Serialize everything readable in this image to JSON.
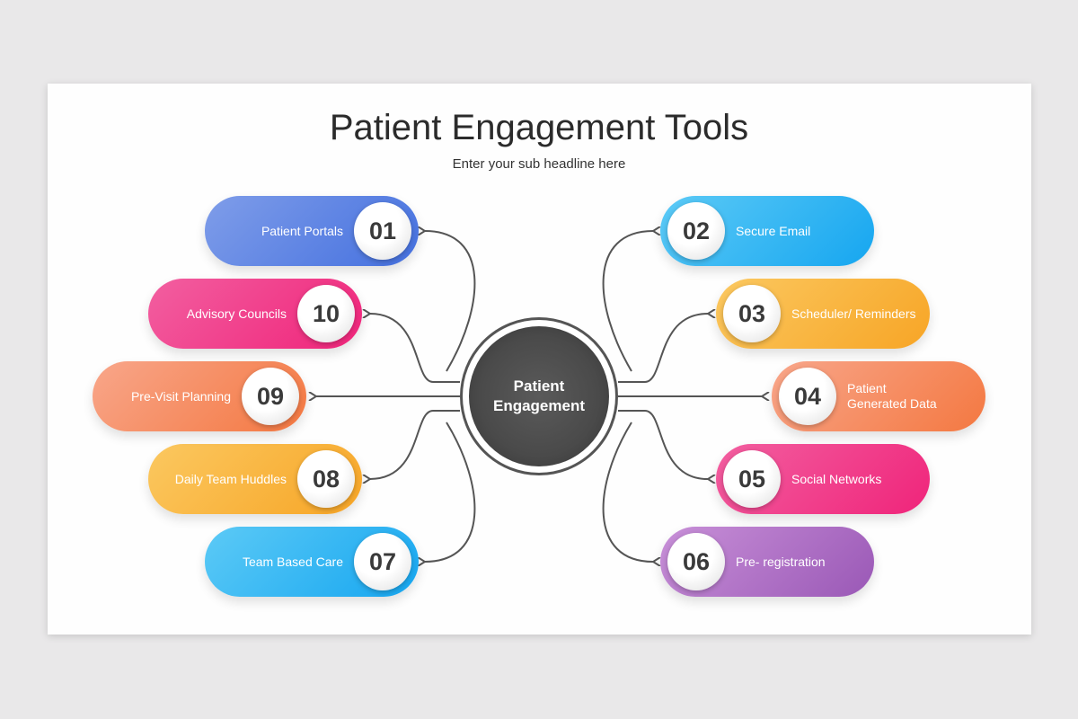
{
  "title": "Patient Engagement Tools",
  "subtitle": "Enter your sub headline here",
  "center": {
    "line1": "Patient",
    "line2": "Engagement"
  },
  "items": [
    {
      "num": "01",
      "label": "Patient Portals",
      "color_from": "#7f9de9",
      "color_to": "#4470df"
    },
    {
      "num": "02",
      "label": "Secure Email",
      "color_from": "#5ccaf6",
      "color_to": "#16a6f0"
    },
    {
      "num": "03",
      "label": "Scheduler/ Reminders",
      "color_from": "#fbc860",
      "color_to": "#f7a526"
    },
    {
      "num": "04",
      "label": "Patient Generated Data",
      "color_from": "#f8a68a",
      "color_to": "#f47841"
    },
    {
      "num": "05",
      "label": "Social Networks",
      "color_from": "#f25fa0",
      "color_to": "#f0247a"
    },
    {
      "num": "06",
      "label": "Pre- registration",
      "color_from": "#c890d8",
      "color_to": "#9a58b6"
    },
    {
      "num": "07",
      "label": "Team Based Care",
      "color_from": "#5ccaf6",
      "color_to": "#16a6f0"
    },
    {
      "num": "08",
      "label": "Daily Team Huddles",
      "color_from": "#fbc860",
      "color_to": "#f7a526"
    },
    {
      "num": "09",
      "label": "Pre-Visit Planning",
      "color_from": "#f8a68a",
      "color_to": "#f47841"
    },
    {
      "num": "10",
      "label": "Advisory Councils",
      "color_from": "#f25fa0",
      "color_to": "#f0247a"
    }
  ]
}
